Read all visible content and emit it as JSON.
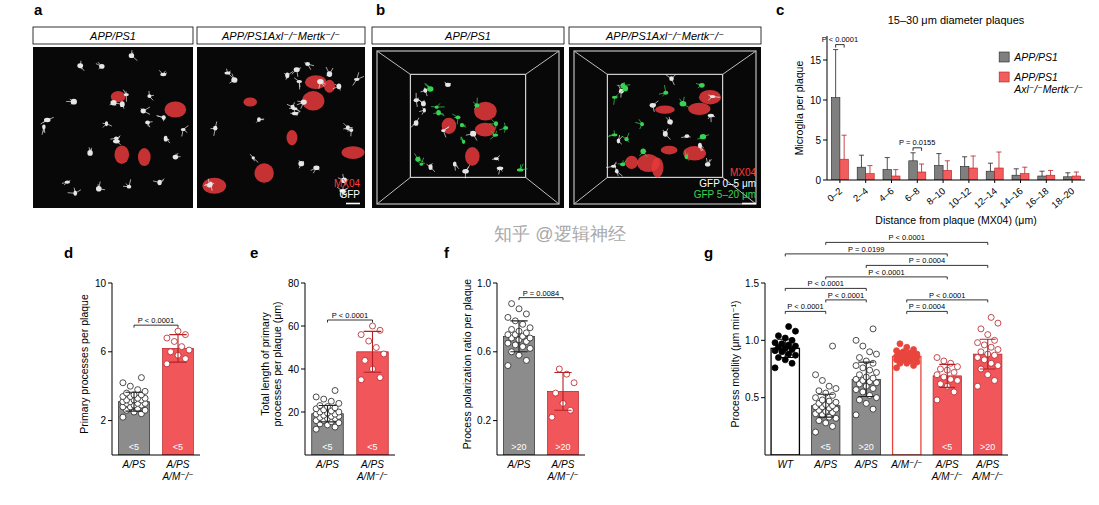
{
  "image_panels": [
    {
      "panel_letter": "a",
      "headers": [
        "APP/PS1",
        "APP/PS1Axl⁻/⁻Mertk⁻/⁻"
      ],
      "labels": [
        {
          "text": "MX04",
          "color": "#ff3b3b"
        },
        {
          "text": "GFP",
          "color": "#ffffff"
        }
      ]
    },
    {
      "panel_letter": "b",
      "headers": [
        "APP/PS1",
        "APP/PS1Axl⁻/⁻Mertk⁻/⁻"
      ],
      "labels": [
        {
          "text": "MX04",
          "color": "#ff3b3b"
        },
        {
          "text": "GFP 0–5 μm",
          "color": "#ffffff"
        },
        {
          "text": "GFP 5–20 μm",
          "color": "#39d353"
        }
      ]
    }
  ],
  "chart_data": [
    {
      "type": "bar",
      "panel_letter": "c",
      "title": "15–30 μm diameter plaques",
      "x_label": "Distance from plaque (MX04) (μm)",
      "y_label": "Microglia per plaque",
      "categories": [
        "0–2",
        "2–4",
        "4–6",
        "6–8",
        "8–10",
        "10–12",
        "12–14",
        "14–16",
        "16–18",
        "18–20"
      ],
      "series": [
        {
          "name": "APP/PS1",
          "color": "#7f7f7f",
          "values": [
            10.3,
            1.6,
            1.3,
            2.4,
            1.8,
            1.7,
            1.1,
            0.6,
            0.5,
            0.4
          ],
          "errors": [
            6,
            1.5,
            1.5,
            1.0,
            1.5,
            1.2,
            1.0,
            0.8,
            0.6,
            0.5
          ]
        },
        {
          "name": "APP/PS1 Axl⁻/⁻Mertk⁻/⁻",
          "color": "#f25c5c",
          "values": [
            2.6,
            0.8,
            0.5,
            1.0,
            1.2,
            1.5,
            1.5,
            0.8,
            0.6,
            0.5
          ],
          "errors": [
            3,
            1.0,
            0.8,
            1.0,
            1.2,
            1.5,
            2.0,
            0.8,
            0.6,
            0.5
          ]
        }
      ],
      "ylim": [
        0,
        18
      ],
      "yticks": [
        0,
        5,
        10,
        15
      ],
      "legend": "upper right",
      "comparisons": [
        {
          "category": 0,
          "label": "P < 0.0001"
        },
        {
          "category": 3,
          "label": "P = 0.0155"
        }
      ]
    },
    {
      "type": "bar",
      "panel_letter": "d",
      "y_label": "Primary processes per plaque",
      "categories": [
        "A/PS",
        "A/PS A/M⁻/⁻"
      ],
      "colors": [
        "#8c8c8c",
        "#f0565a"
      ],
      "values": [
        3.1,
        6.2
      ],
      "errors": [
        0.55,
        0.8
      ],
      "points": [
        [
          2.2,
          2.4,
          2.5,
          2.6,
          2.6,
          2.7,
          2.8,
          2.8,
          2.9,
          2.9,
          3.0,
          3.0,
          3.0,
          3.1,
          3.1,
          3.2,
          3.2,
          3.2,
          3.3,
          3.3,
          3.4,
          3.4,
          3.5,
          3.5,
          3.6,
          3.7,
          3.8,
          4.0,
          4.2,
          4.5
        ],
        [
          5.3,
          5.6,
          5.8,
          6.0,
          6.1,
          6.3,
          6.6,
          6.8,
          7.0,
          7.2
        ]
      ],
      "bar_labels": [
        "<5",
        "<5"
      ],
      "ylim": [
        0,
        10
      ],
      "yticks": [
        2,
        6,
        10
      ],
      "comparisons": [
        {
          "between": [
            0,
            1
          ],
          "label": "P < 0.0001"
        }
      ]
    },
    {
      "type": "bar",
      "panel_letter": "e",
      "y_label": "Total length of primary processes per plaque (μm)",
      "categories": [
        "A/PS",
        "A/PS A/M⁻/⁻"
      ],
      "colors": [
        "#8c8c8c",
        "#f0565a"
      ],
      "values": [
        19.2,
        48
      ],
      "errors": [
        3.8,
        9.5
      ],
      "points": [
        [
          12,
          13,
          14,
          14.5,
          15,
          15.5,
          16,
          16,
          17,
          17,
          17.5,
          18,
          18,
          18.5,
          19,
          19,
          19.5,
          20,
          20,
          20.5,
          21,
          21.5,
          22,
          22.5,
          23,
          24,
          25,
          26,
          27,
          30
        ],
        [
          35,
          36,
          40,
          44,
          47,
          50,
          53,
          56,
          58,
          60
        ]
      ],
      "bar_labels": [
        "<5",
        "<5"
      ],
      "ylim": [
        0,
        80
      ],
      "yticks": [
        20,
        40,
        60,
        80
      ],
      "comparisons": [
        {
          "between": [
            0,
            1
          ],
          "label": "P < 0.0001"
        }
      ]
    },
    {
      "type": "bar",
      "panel_letter": "f",
      "y_label": "Process polarization ratio per plaque",
      "categories": [
        "A/PS",
        "A/PS A/M⁻/⁻"
      ],
      "colors": [
        "#8c8c8c",
        "#f0565a"
      ],
      "values": [
        0.69,
        0.37
      ],
      "errors": [
        0.09,
        0.11
      ],
      "points": [
        [
          0.52,
          0.55,
          0.58,
          0.6,
          0.62,
          0.63,
          0.64,
          0.65,
          0.66,
          0.67,
          0.68,
          0.68,
          0.69,
          0.7,
          0.7,
          0.71,
          0.72,
          0.73,
          0.74,
          0.76,
          0.78,
          0.8,
          0.82,
          0.85,
          0.88
        ],
        [
          0.22,
          0.26,
          0.3,
          0.36,
          0.42,
          0.47,
          0.5
        ]
      ],
      "bar_labels": [
        ">20",
        ">20"
      ],
      "ylim": [
        0,
        1.0
      ],
      "yticks": [
        {
          "value": 0.2,
          "label": "0.2"
        },
        {
          "value": 0.6,
          "label": "0.6"
        },
        {
          "value": 1.0,
          "label": "1.0"
        }
      ],
      "comparisons": [
        {
          "between": [
            0,
            1
          ],
          "label": "P = 0.0084"
        }
      ]
    },
    {
      "type": "bar",
      "panel_letter": "g",
      "y_label": "Process motility (μm min⁻¹)",
      "categories": [
        "WT",
        "A/PS",
        "A/PS",
        "A/M⁻/⁻",
        "A/PS A/M⁻/⁻",
        "A/PS A/M⁻/⁻"
      ],
      "colors": [
        "#000000",
        "#8c8c8c",
        "#8c8c8c",
        "#e8453c",
        "#f0565a",
        "#f0565a"
      ],
      "values": [
        0.93,
        0.43,
        0.66,
        0.86,
        0.69,
        0.88
      ],
      "errors": [
        0.08,
        0.1,
        0.15,
        0.05,
        0.1,
        0.13
      ],
      "points": [
        [
          0.76,
          0.8,
          0.83,
          0.85,
          0.87,
          0.88,
          0.9,
          0.91,
          0.92,
          0.93,
          0.94,
          0.95,
          0.96,
          0.97,
          0.98,
          1.0,
          1.02,
          1.04,
          1.08,
          1.12
        ],
        [
          0.2,
          0.25,
          0.28,
          0.3,
          0.32,
          0.33,
          0.35,
          0.36,
          0.37,
          0.38,
          0.39,
          0.4,
          0.41,
          0.42,
          0.42,
          0.43,
          0.44,
          0.45,
          0.46,
          0.47,
          0.48,
          0.5,
          0.52,
          0.54,
          0.56,
          0.58,
          0.6,
          0.65,
          0.7,
          0.95
        ],
        [
          0.35,
          0.4,
          0.45,
          0.48,
          0.5,
          0.52,
          0.55,
          0.57,
          0.58,
          0.6,
          0.62,
          0.63,
          0.64,
          0.65,
          0.66,
          0.67,
          0.68,
          0.7,
          0.72,
          0.74,
          0.76,
          0.78,
          0.8,
          0.82,
          0.85,
          0.88,
          0.9,
          0.95,
          1.0,
          1.1
        ],
        [
          0.76,
          0.78,
          0.8,
          0.8,
          0.81,
          0.82,
          0.83,
          0.83,
          0.84,
          0.84,
          0.85,
          0.85,
          0.85,
          0.86,
          0.86,
          0.87,
          0.87,
          0.88,
          0.88,
          0.89,
          0.9,
          0.91,
          0.92,
          0.94,
          0.97
        ],
        [
          0.48,
          0.55,
          0.6,
          0.62,
          0.65,
          0.66,
          0.68,
          0.7,
          0.72,
          0.74,
          0.75,
          0.77,
          0.8,
          0.82,
          0.85
        ],
        [
          0.6,
          0.65,
          0.7,
          0.75,
          0.78,
          0.8,
          0.83,
          0.85,
          0.87,
          0.88,
          0.9,
          0.92,
          0.94,
          0.96,
          0.98,
          1.0,
          1.05,
          1.1,
          1.15,
          1.2
        ]
      ],
      "bar_labels": [
        null,
        "<5",
        ">20",
        null,
        "<5",
        ">20"
      ],
      "ylim": [
        0,
        1.5
      ],
      "yticks": [
        {
          "value": 0.5,
          "label": "0.5"
        },
        {
          "value": 1.0,
          "label": "1.0"
        },
        {
          "value": 1.5,
          "label": "1.5"
        }
      ],
      "comparisons": [
        {
          "between": [
            0,
            4
          ],
          "label": "P = 0.0199"
        },
        {
          "between": [
            1,
            4
          ],
          "label": "P < 0.0001"
        },
        {
          "between": [
            2,
            5
          ],
          "label": "P = 0.0004"
        },
        {
          "between": [
            1,
            5
          ],
          "label": "P < 0.0001"
        },
        {
          "between": [
            3,
            5
          ],
          "label": "P < 0.0001"
        },
        {
          "between": [
            0,
            2
          ],
          "label": "P < 0.0001"
        },
        {
          "between": [
            0,
            1
          ],
          "label": "P < 0.0001"
        },
        {
          "between": [
            1,
            2
          ],
          "label": "P < 0.0001"
        },
        {
          "between": [
            3,
            4
          ],
          "label": "P = 0.0004"
        }
      ]
    }
  ],
  "watermark": "知乎 @逻辑神经"
}
